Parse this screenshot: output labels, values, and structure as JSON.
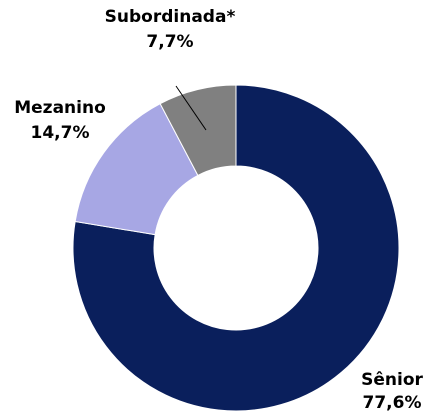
{
  "chart_data": {
    "type": "donut",
    "categories": [
      "Sênior",
      "Mezanino",
      "Subordinada*"
    ],
    "values": [
      77.6,
      14.7,
      7.7
    ],
    "value_labels": [
      "77,6%",
      "14,7%",
      "7,7%"
    ],
    "colors": [
      "#0a1f5c",
      "#a7a7e4",
      "#808080"
    ]
  }
}
